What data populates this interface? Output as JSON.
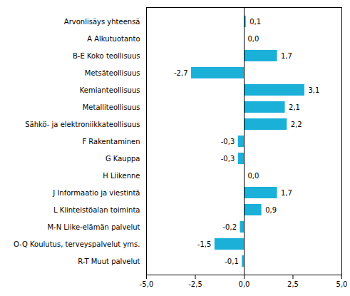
{
  "chart_data": {
    "type": "bar",
    "orientation": "horizontal",
    "categories": [
      "R-T Muut palvelut",
      "O-Q Koulutus, terveyspalvelut yms.",
      "M-N Liike-elämän palvelut",
      "L Kiinteistöalan toiminta",
      "J Informaatio ja viestintä",
      "H Liikenne",
      "G Kauppa",
      "F Rakentaminen",
      "Sähkö- ja elektroniikkateollisuus",
      "Metalliteollisuus",
      "Kemianteollisuus",
      "Metsäteollisuus",
      "B-E Koko teollisuus",
      "A Alkutuotanto",
      "Arvonlisäys yhteensä"
    ],
    "values": [
      -0.1,
      -1.5,
      -0.2,
      0.9,
      1.7,
      0.0,
      -0.3,
      -0.3,
      2.2,
      2.1,
      3.1,
      -2.7,
      1.7,
      0.0,
      0.1
    ],
    "value_labels": [
      "-0,1",
      "-1,5",
      "-0,2",
      "0,9",
      "1,7",
      "0,0",
      "-0,3",
      "-0,3",
      "2,2",
      "2,1",
      "3,1",
      "-2,7",
      "1,7",
      "0,0",
      "0,1"
    ],
    "data_labels": true,
    "color": "#1ab0d8",
    "xlim": [
      -5.0,
      5.0
    ],
    "xticks": [
      {
        "value": -5.0,
        "label": "-5,0"
      },
      {
        "value": -2.5,
        "label": "-2,5"
      },
      {
        "value": 0.0,
        "label": "0,0"
      },
      {
        "value": 2.5,
        "label": "2,5"
      },
      {
        "value": 5.0,
        "label": "5,0"
      }
    ],
    "grid": false
  }
}
